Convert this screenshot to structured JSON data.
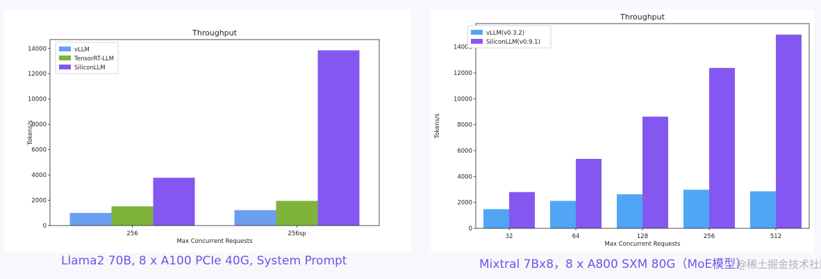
{
  "captions": {
    "left": "Llama2 70B, 8 x A100 PCIe 40G, System Prompt",
    "right": "Mixtral 7Bx8，8 x A800 SXM 80G（MoE模型）"
  },
  "watermark": "@稀土掘金技术社区",
  "chart_data": [
    {
      "type": "bar",
      "title": "Throughput",
      "xlabel": "Max Concurrent Requests",
      "ylabel": "Tokens/s",
      "categories": [
        "256",
        "256sp"
      ],
      "series": [
        {
          "name": "vLLM",
          "color": "#6a9ff0",
          "values": [
            1000,
            1220
          ]
        },
        {
          "name": "TensorRT-LLM",
          "color": "#7fb43a",
          "values": [
            1520,
            1950
          ]
        },
        {
          "name": "SiliconLLM",
          "color": "#8458f0",
          "values": [
            3780,
            13850
          ]
        }
      ],
      "ylim": [
        0,
        14700
      ],
      "yticks": [
        0,
        2000,
        4000,
        6000,
        8000,
        10000,
        12000,
        14000
      ],
      "legend": "top-left",
      "grid": false
    },
    {
      "type": "bar",
      "title": "Throughput",
      "xlabel": "Max Concurrent Requests",
      "ylabel": "Tokens/s",
      "categories": [
        "32",
        "64",
        "128",
        "256",
        "512"
      ],
      "series": [
        {
          "name": "vLLM(v0.3.2)",
          "color": "#50a6f5",
          "values": [
            1480,
            2120,
            2630,
            2980,
            2860
          ]
        },
        {
          "name": "SiliconLLM(v0.9.1)",
          "color": "#8458f0",
          "values": [
            2800,
            5360,
            8620,
            12380,
            14950
          ]
        }
      ],
      "ylim": [
        0,
        15800
      ],
      "yticks": [
        0,
        2000,
        4000,
        6000,
        8000,
        10000,
        12000,
        14000
      ],
      "legend": "top-left",
      "grid": false
    }
  ]
}
